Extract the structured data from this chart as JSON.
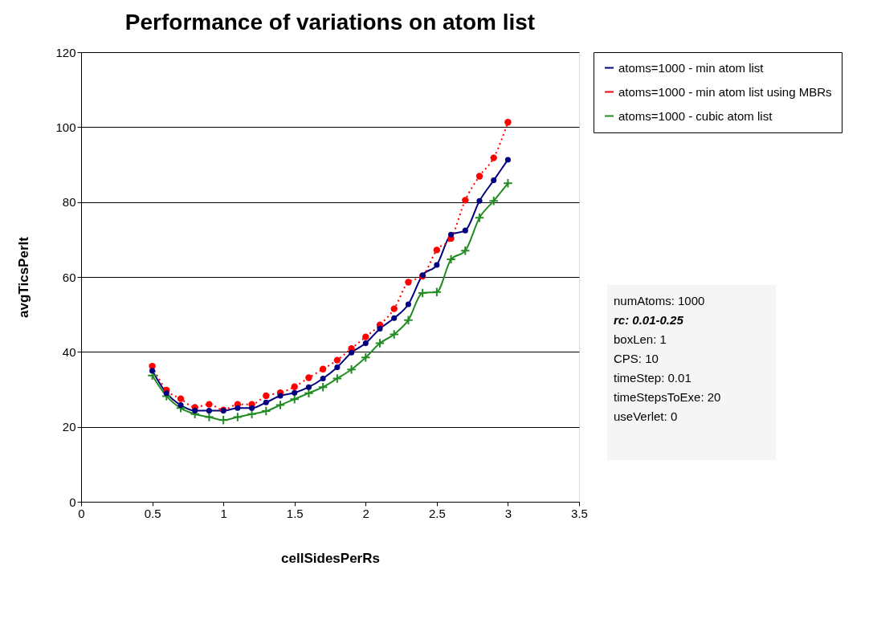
{
  "chart_data": {
    "type": "line",
    "title": "Performance of variations on atom list",
    "xlabel": "cellSidesPerRs",
    "ylabel": "avgTicsPerIt",
    "x": [
      0.5,
      0.6,
      0.7,
      0.8,
      0.9,
      1.0,
      1.1,
      1.2,
      1.3,
      1.4,
      1.5,
      1.6,
      1.7,
      1.8,
      1.9,
      2.0,
      2.1,
      2.2,
      2.3,
      2.4,
      2.5,
      2.6,
      2.7,
      2.8,
      2.9,
      3.0
    ],
    "series": [
      {
        "name": "atoms=1000 - min atom list",
        "color": "#000080",
        "marker": "circle",
        "line_style": "solid",
        "values": [
          35,
          29,
          25.8,
          24.3,
          24.3,
          24.3,
          25,
          25,
          26.5,
          28.3,
          29.1,
          30.6,
          32.9,
          35.9,
          39.8,
          42.3,
          46.2,
          49,
          52.7,
          60.5,
          63.2,
          71.3,
          72.4,
          80.3,
          85.8,
          91.3
        ]
      },
      {
        "name": "atoms=1000 - min atom list using MBRs",
        "color": "#ff0000",
        "marker": "circle",
        "line_style": "dotted",
        "values": [
          36.2,
          29.8,
          27.5,
          25.2,
          26,
          24.5,
          26,
          26,
          28.3,
          29.1,
          30.7,
          33.1,
          35.4,
          37.8,
          40.9,
          44,
          47.2,
          51.5,
          58.6,
          60.2,
          67.2,
          70.3,
          80.5,
          86.9,
          91.8,
          101.3
        ]
      },
      {
        "name": "atoms=1000 - cubic atom list",
        "color": "#228b22",
        "marker": "cross",
        "line_style": "solid",
        "values": [
          33.7,
          28.2,
          25,
          23.4,
          22.6,
          21.8,
          22.6,
          23.4,
          24.2,
          25.8,
          27.4,
          29,
          30.6,
          32.9,
          35.3,
          38.5,
          42.3,
          44.7,
          48.5,
          55.7,
          56,
          64.7,
          67,
          75.8,
          80.3,
          85
        ]
      }
    ],
    "xlim": [
      0,
      3.5
    ],
    "xticks": [
      0,
      0.5,
      1,
      1.5,
      2,
      2.5,
      3,
      3.5
    ],
    "ylim": [
      0,
      120
    ],
    "yticks": [
      0,
      20,
      40,
      60,
      80,
      100,
      120
    ],
    "grid": "y",
    "legend": "top right",
    "annotations": [
      "numAtoms: 1000",
      "rc: 0.01-0.25",
      "boxLen: 1",
      "CPS: 10",
      "timeStep: 0.01",
      "timeStepsToExe: 20",
      "useVerlet: 0"
    ]
  }
}
